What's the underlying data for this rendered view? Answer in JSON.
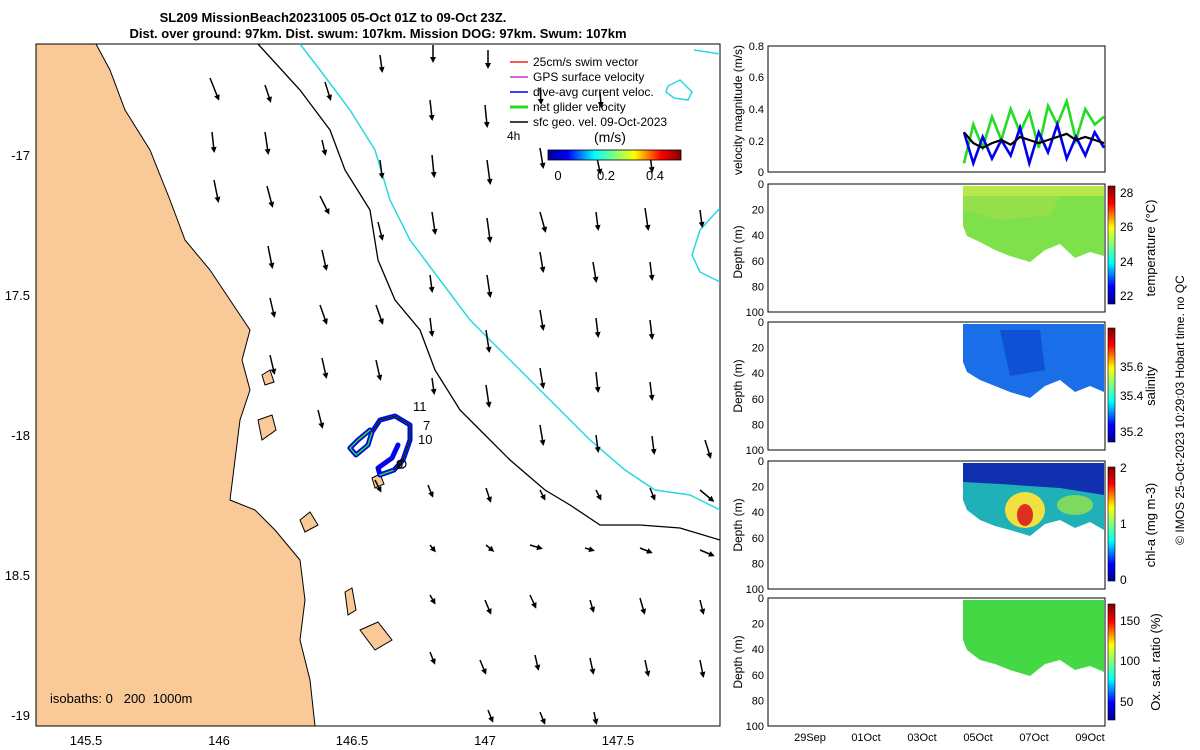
{
  "header": {
    "title_line1": "SL209 MissionBeach20231005 05-Oct 01Z to 09-Oct 23Z.",
    "title_line2": "Dist. over ground: 97km. Dist. swum: 107km. Mission DOG: 97km. Swum: 107km"
  },
  "footer": {
    "credit": "© IMOS 25-Oct-2023 10:29:03 Hobart time. no QC"
  },
  "colors": {
    "land": "#f9c997",
    "contour_200m": "#2ad8e0",
    "contour_1000m": "#000000",
    "net_glider": "#22dd22",
    "dive_avg": "#0000ee",
    "gps_surface": "#cc33cc",
    "swim": "#ee2222",
    "sfc_geo": "#000000"
  },
  "map": {
    "legend": {
      "items": [
        {
          "label": "25cm/s swim vector",
          "color": "#ee2222"
        },
        {
          "label": "GPS surface velocity",
          "color": "#cc33cc"
        },
        {
          "label": "dive-avg current veloc.",
          "color": "#0000ee"
        },
        {
          "label": "net glider velocity",
          "color": "#22dd22"
        },
        {
          "label": "sfc geo. vel. 09-Oct-2023",
          "color": "#000000"
        }
      ],
      "time_step": "4h",
      "colorbar_label": "(m/s)",
      "colorbar_ticks": [
        "0",
        "0.2",
        "0.4"
      ],
      "colorbar_range": [
        0,
        0.5
      ]
    },
    "isobaths_label": "isobaths: 0   200  1000m",
    "lon_ticks": [
      "145.5",
      "146",
      "146.5",
      "147",
      "147.5"
    ],
    "lat_ticks": [
      "-17",
      "17.5",
      "-18",
      "18.5",
      "-19"
    ],
    "track_labels": [
      "11",
      "7",
      "10",
      "9"
    ]
  },
  "chart_data": [
    {
      "type": "line",
      "ylabel": "velocity magnitude (m/s)",
      "ylim": [
        0,
        0.8
      ],
      "yticks": [
        "0",
        "0.2",
        "0.4",
        "0.6",
        "0.8"
      ],
      "x_ticks": [
        "29Sep",
        "01Oct",
        "03Oct",
        "05Oct",
        "07Oct",
        "09Oct"
      ],
      "series": [
        {
          "color": "#22dd22",
          "values": [
            0.05,
            0.3,
            0.15,
            0.35,
            0.2,
            0.4,
            0.25,
            0.38,
            0.15,
            0.42,
            0.3,
            0.45,
            0.2,
            0.4,
            0.3,
            0.35
          ]
        },
        {
          "color": "#0000ee",
          "values": [
            0.25,
            0.05,
            0.22,
            0.08,
            0.2,
            0.1,
            0.28,
            0.05,
            0.25,
            0.12,
            0.3,
            0.08,
            0.22,
            0.1,
            0.25,
            0.15
          ]
        },
        {
          "color": "#000000",
          "values": [
            0.25,
            0.18,
            0.15,
            0.18,
            0.2,
            0.17,
            0.22,
            0.2,
            0.18,
            0.2,
            0.22,
            0.24,
            0.2,
            0.22,
            0.2,
            0.18
          ]
        }
      ]
    },
    {
      "type": "heatmap",
      "ylabel": "Depth (m)",
      "colorbar_label": "temperature (°C)",
      "colorbar_ticks": [
        "22",
        "24",
        "26",
        "28"
      ],
      "depth_ticks": [
        "0",
        "20",
        "40",
        "60",
        "80",
        "100"
      ]
    },
    {
      "type": "heatmap",
      "ylabel": "Depth (m)",
      "colorbar_label": "salinity",
      "colorbar_ticks": [
        "35.2",
        "35.4",
        "35.6"
      ],
      "depth_ticks": [
        "0",
        "20",
        "40",
        "60",
        "80",
        "100"
      ]
    },
    {
      "type": "heatmap",
      "ylabel": "Depth (m)",
      "colorbar_label": "chl-a (mg m-3)",
      "colorbar_ticks": [
        "0",
        "1",
        "2"
      ],
      "depth_ticks": [
        "0",
        "20",
        "40",
        "60",
        "80",
        "100"
      ]
    },
    {
      "type": "heatmap",
      "ylabel": "Depth (m)",
      "colorbar_label": "Ox. sat. ratio (%)",
      "colorbar_ticks": [
        "50",
        "100",
        "150"
      ],
      "depth_ticks": [
        "0",
        "20",
        "40",
        "60",
        "80",
        "100"
      ],
      "x_ticks": [
        "29Sep",
        "01Oct",
        "03Oct",
        "05Oct",
        "07Oct",
        "09Oct"
      ]
    }
  ]
}
